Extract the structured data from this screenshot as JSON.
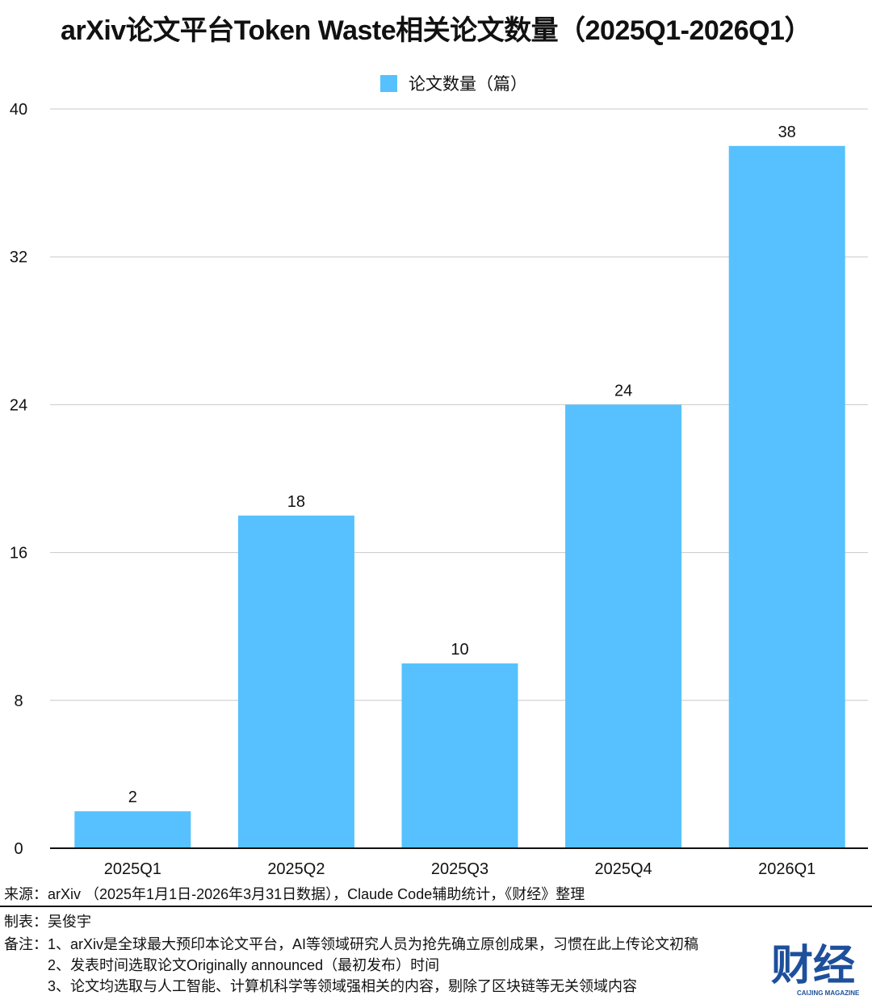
{
  "chart_data": {
    "type": "bar",
    "title": "arXiv论文平台Token Waste相关论文数量（2025Q1-2026Q1）",
    "categories": [
      "2025Q1",
      "2025Q2",
      "2025Q3",
      "2025Q4",
      "2026Q1"
    ],
    "series": [
      {
        "name": "论文数量（篇）",
        "values": [
          2,
          18,
          10,
          24,
          38
        ],
        "color": "#56C1FE"
      }
    ],
    "yticks": [
      0,
      8,
      16,
      24,
      32,
      40
    ],
    "ylim": [
      0,
      40
    ],
    "grid": true,
    "legend": "top-center",
    "data_labels": true
  },
  "footer": {
    "source": "来源：arXiv （2025年1月1日-2026年3月31日数据），Claude Code辅助统计，《财经》整理",
    "maker": "制表：吴俊宇",
    "notes_label": "备注：",
    "notes": [
      "1、arXiv是全球最大预印本论文平台，AI等领域研究人员为抢先确立原创成果，习惯在此上传论文初稿",
      "2、发表时间选取论文Originally announced（最初发布）时间",
      "3、论文均选取与人工智能、计算机科学等领域强相关的内容，剔除了区块链等无关领域内容"
    ]
  },
  "logo": {
    "text": "财经",
    "subtext": "CAIJING MAGAZINE"
  }
}
